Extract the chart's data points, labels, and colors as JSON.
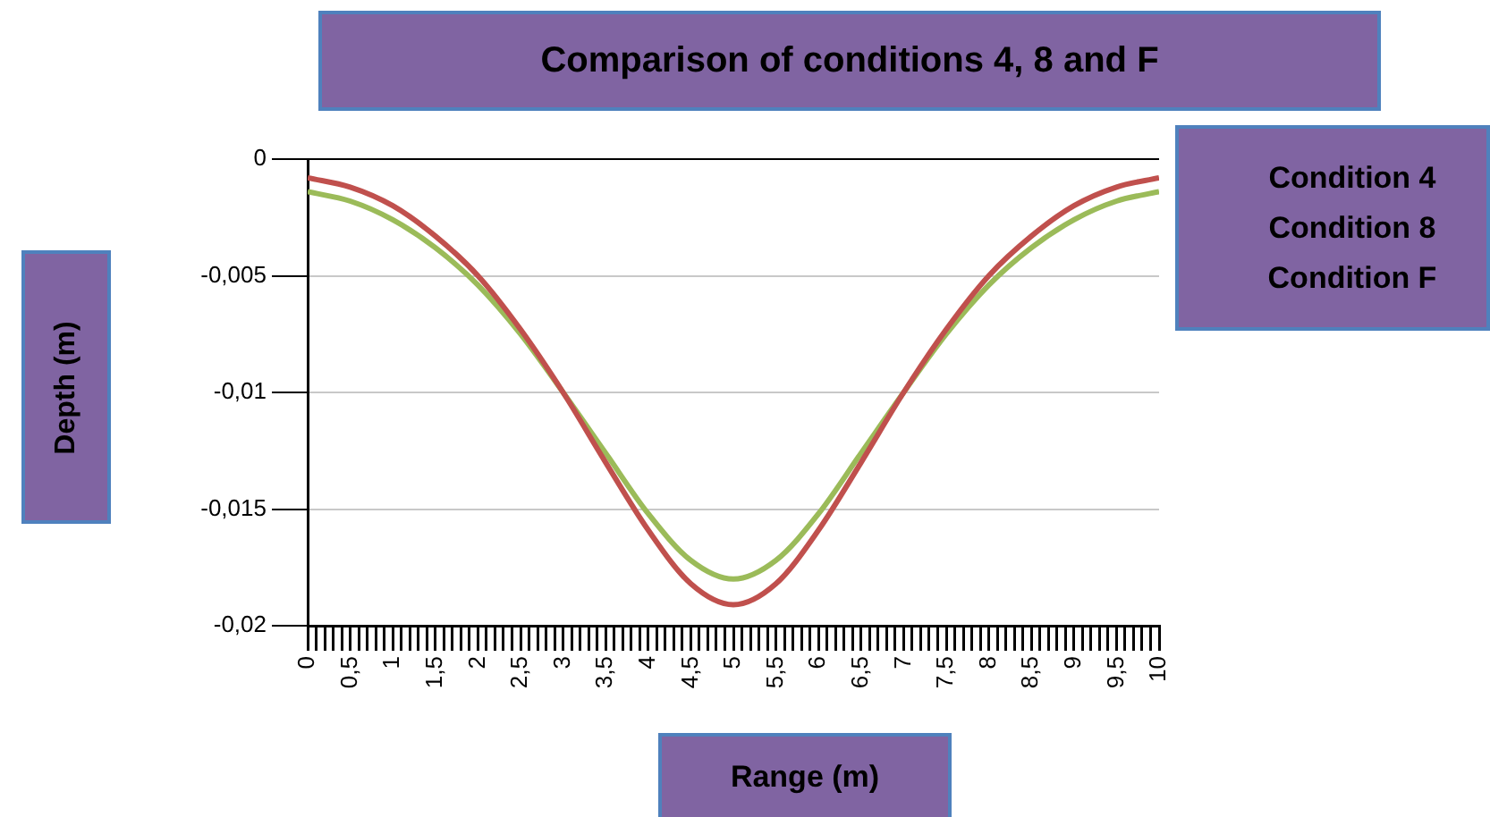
{
  "chart_data": {
    "type": "line",
    "title": "Comparison of conditions 4, 8 and F",
    "xlabel": "Range (m)",
    "ylabel": "Depth (m)",
    "annotations": [
      "Condition 4",
      "Condition 8",
      "Condition F"
    ],
    "x": [
      0,
      0.5,
      1,
      1.5,
      2,
      2.5,
      3,
      3.5,
      4,
      4.5,
      5,
      5.5,
      6,
      6.5,
      7,
      7.5,
      8,
      8.5,
      9,
      9.5,
      10
    ],
    "series": [
      {
        "color": "#c0504d",
        "values": [
          -0.0008,
          -0.0012,
          -0.002,
          -0.0033,
          -0.005,
          -0.0073,
          -0.01,
          -0.013,
          -0.0159,
          -0.0182,
          -0.0191,
          -0.0182,
          -0.0159,
          -0.013,
          -0.01,
          -0.0073,
          -0.005,
          -0.0033,
          -0.002,
          -0.0012,
          -0.0008
        ]
      },
      {
        "color": "#9bbb59",
        "values": [
          -0.0014,
          -0.0018,
          -0.0026,
          -0.0038,
          -0.0054,
          -0.0075,
          -0.01,
          -0.0126,
          -0.0152,
          -0.0172,
          -0.018,
          -0.0172,
          -0.0152,
          -0.0126,
          -0.01,
          -0.0075,
          -0.0054,
          -0.0038,
          -0.0026,
          -0.0018,
          -0.0014
        ]
      }
    ],
    "xlim": [
      0,
      10
    ],
    "xticks": [
      0,
      {
        "value": 0.1,
        "label": null
      },
      {
        "value": 0.2,
        "label": null
      },
      {
        "value": 0.3,
        "label": null
      },
      {
        "value": 0.4,
        "label": null
      },
      {
        "value": 0.5,
        "label": "0,5"
      },
      {
        "value": 0.6,
        "label": null
      },
      {
        "value": 0.7,
        "label": null
      },
      {
        "value": 0.8,
        "label": null
      },
      {
        "value": 0.9,
        "label": null
      },
      1,
      {
        "value": 1.1,
        "label": null
      },
      {
        "value": 1.2,
        "label": null
      },
      {
        "value": 1.3,
        "label": null
      },
      {
        "value": 1.4,
        "label": null
      },
      {
        "value": 1.5,
        "label": "1,5"
      },
      {
        "value": 1.6,
        "label": null
      },
      {
        "value": 1.7,
        "label": null
      },
      {
        "value": 1.8,
        "label": null
      },
      {
        "value": 1.9,
        "label": null
      },
      2,
      {
        "value": 2.1,
        "label": null
      },
      {
        "value": 2.2,
        "label": null
      },
      {
        "value": 2.3,
        "label": null
      },
      {
        "value": 2.4,
        "label": null
      },
      {
        "value": 2.5,
        "label": "2,5"
      },
      {
        "value": 2.6,
        "label": null
      },
      {
        "value": 2.7,
        "label": null
      },
      {
        "value": 2.8,
        "label": null
      },
      {
        "value": 2.9,
        "label": null
      },
      3,
      {
        "value": 3.1,
        "label": null
      },
      {
        "value": 3.2,
        "label": null
      },
      {
        "value": 3.3,
        "label": null
      },
      {
        "value": 3.4,
        "label": null
      },
      {
        "value": 3.5,
        "label": "3,5"
      },
      {
        "value": 3.6,
        "label": null
      },
      {
        "value": 3.7,
        "label": null
      },
      {
        "value": 3.8,
        "label": null
      },
      {
        "value": 3.9,
        "label": null
      },
      4,
      {
        "value": 4.1,
        "label": null
      },
      {
        "value": 4.2,
        "label": null
      },
      {
        "value": 4.3,
        "label": null
      },
      {
        "value": 4.4,
        "label": null
      },
      {
        "value": 4.5,
        "label": "4,5"
      },
      {
        "value": 4.6,
        "label": null
      },
      {
        "value": 4.7,
        "label": null
      },
      {
        "value": 4.8,
        "label": null
      },
      {
        "value": 4.9,
        "label": null
      },
      5,
      {
        "value": 5.1,
        "label": null
      },
      {
        "value": 5.2,
        "label": null
      },
      {
        "value": 5.3,
        "label": null
      },
      {
        "value": 5.4,
        "label": null
      },
      {
        "value": 5.5,
        "label": "5,5"
      },
      {
        "value": 5.6,
        "label": null
      },
      {
        "value": 5.7,
        "label": null
      },
      {
        "value": 5.8,
        "label": null
      },
      {
        "value": 5.9,
        "label": null
      },
      6,
      {
        "value": 6.1,
        "label": null
      },
      {
        "value": 6.2,
        "label": null
      },
      {
        "value": 6.3,
        "label": null
      },
      {
        "value": 6.4,
        "label": null
      },
      {
        "value": 6.5,
        "label": "6,5"
      },
      {
        "value": 6.6,
        "label": null
      },
      {
        "value": 6.7,
        "label": null
      },
      {
        "value": 6.8,
        "label": null
      },
      {
        "value": 6.9,
        "label": null
      },
      7,
      {
        "value": 7.1,
        "label": null
      },
      {
        "value": 7.2,
        "label": null
      },
      {
        "value": 7.3,
        "label": null
      },
      {
        "value": 7.4,
        "label": null
      },
      {
        "value": 7.5,
        "label": "7,5"
      },
      {
        "value": 7.6,
        "label": null
      },
      {
        "value": 7.7,
        "label": null
      },
      {
        "value": 7.8,
        "label": null
      },
      {
        "value": 7.9,
        "label": null
      },
      8,
      {
        "value": 8.1,
        "label": null
      },
      {
        "value": 8.2,
        "label": null
      },
      {
        "value": 8.3,
        "label": null
      },
      {
        "value": 8.4,
        "label": null
      },
      {
        "value": 8.5,
        "label": "8,5"
      },
      {
        "value": 8.6,
        "label": null
      },
      {
        "value": 8.7,
        "label": null
      },
      {
        "value": 8.8,
        "label": null
      },
      {
        "value": 8.9,
        "label": null
      },
      9,
      {
        "value": 9.1,
        "label": null
      },
      {
        "value": 9.2,
        "label": null
      },
      {
        "value": 9.3,
        "label": null
      },
      {
        "value": 9.4,
        "label": null
      },
      {
        "value": 9.5,
        "label": "9,5"
      },
      {
        "value": 9.6,
        "label": null
      },
      {
        "value": 9.7,
        "label": null
      },
      {
        "value": 9.8,
        "label": null
      },
      {
        "value": 9.9,
        "label": null
      },
      10
    ],
    "ylim": [
      -0.02,
      0
    ],
    "yticks": [
      {
        "value": -0.02,
        "label": "-0,02"
      },
      {
        "value": -0.015,
        "label": "-0,015"
      },
      {
        "value": -0.01,
        "label": "-0,01"
      },
      {
        "value": -0.005,
        "label": "-0,005"
      },
      0
    ],
    "grid": "y"
  }
}
